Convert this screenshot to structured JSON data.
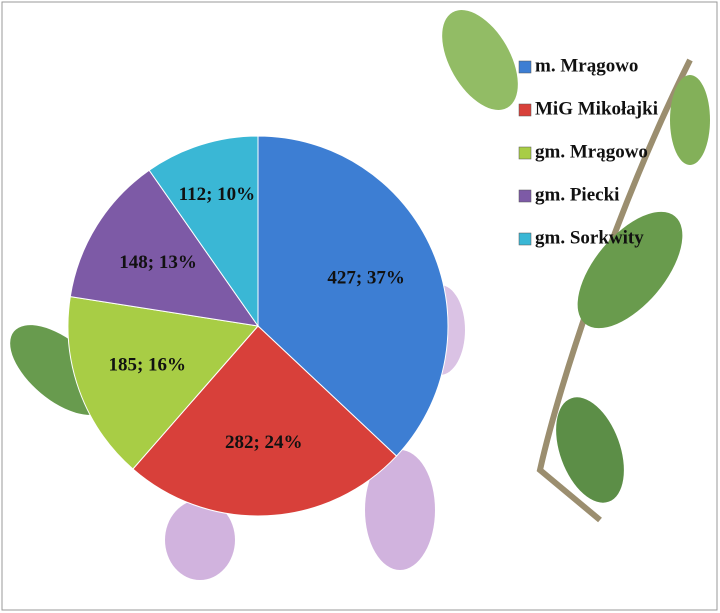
{
  "chart_data": {
    "type": "pie",
    "categories": [
      "m. Mrągowo",
      "MiG Mikołajki",
      "gm. Mrągowo",
      "gm. Piecki",
      "gm. Sorkwity"
    ],
    "values": [
      427,
      282,
      185,
      148,
      112
    ],
    "value_labels": [
      "427; 37%",
      "282; 24%",
      "185; 16%",
      "148; 13%",
      "112; 10%"
    ],
    "colors": [
      "#3d7ed3",
      "#d8403a",
      "#a8cd45",
      "#7d5aa6",
      "#3ab7d5"
    ],
    "legend": "right"
  }
}
